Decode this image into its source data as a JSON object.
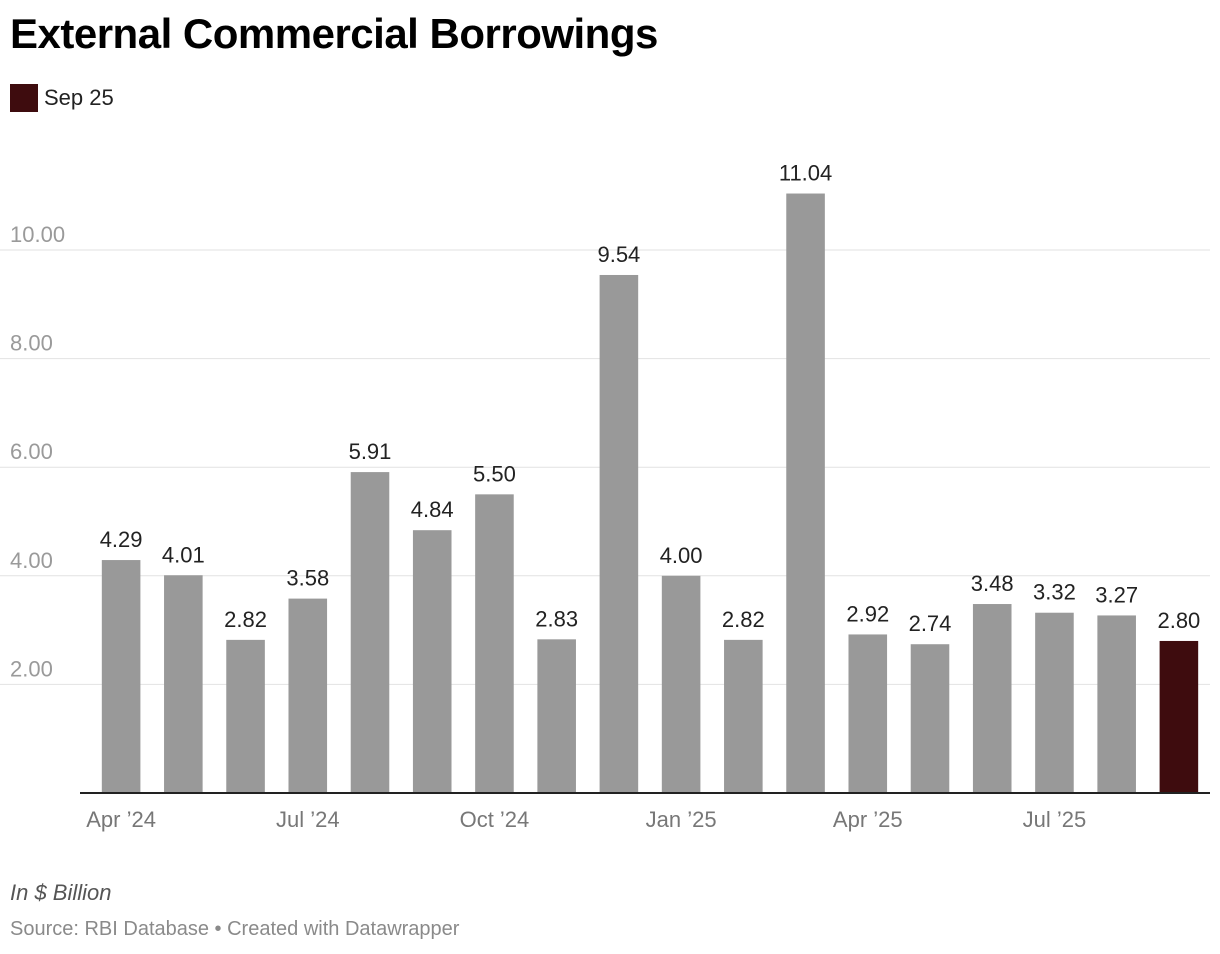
{
  "chart_data": {
    "type": "bar",
    "title": "External Commercial Borrowings",
    "legend": {
      "label": "Sep 25",
      "color": "#3e0c0e"
    },
    "categories": [
      "Apr 2024",
      "May 2024",
      "Jun 2024",
      "Jul 2024",
      "Aug 2024",
      "Sep 2024",
      "Oct 2024",
      "Nov 2024",
      "Dec 2024",
      "Jan 2025",
      "Feb 2025",
      "Mar 2025",
      "Apr 2025",
      "May 2025",
      "Jun 2025",
      "Jul 2025",
      "Aug 2025",
      "Sep 2025"
    ],
    "values": [
      4.29,
      4.01,
      2.82,
      3.58,
      5.91,
      4.84,
      5.5,
      2.83,
      9.54,
      4.0,
      2.82,
      11.04,
      2.92,
      2.74,
      3.48,
      3.32,
      3.27,
      2.8
    ],
    "value_labels": [
      "4.29",
      "4.01",
      "2.82",
      "3.58",
      "5.91",
      "4.84",
      "5.50",
      "2.83",
      "9.54",
      "4.00",
      "2.82",
      "11.04",
      "2.92",
      "2.74",
      "3.48",
      "3.32",
      "3.27",
      "2.80"
    ],
    "x_tick_labels": [
      {
        "index": 0,
        "label": "Apr ’24"
      },
      {
        "index": 3,
        "label": "Jul ’24"
      },
      {
        "index": 6,
        "label": "Oct ’24"
      },
      {
        "index": 9,
        "label": "Jan ’25"
      },
      {
        "index": 12,
        "label": "Apr ’25"
      },
      {
        "index": 15,
        "label": "Jul ’25"
      }
    ],
    "y_ticks": [
      2,
      4,
      6,
      8,
      10
    ],
    "y_tick_labels": [
      "2.00",
      "4.00",
      "6.00",
      "8.00",
      "10.00"
    ],
    "ylim": [
      0,
      11.04
    ],
    "highlight_index": 17,
    "bar_color": "#999999",
    "highlight_color": "#3e0c0e",
    "ylabel": "In $ Billion",
    "source": "Source: RBI Database • Created with Datawrapper"
  }
}
